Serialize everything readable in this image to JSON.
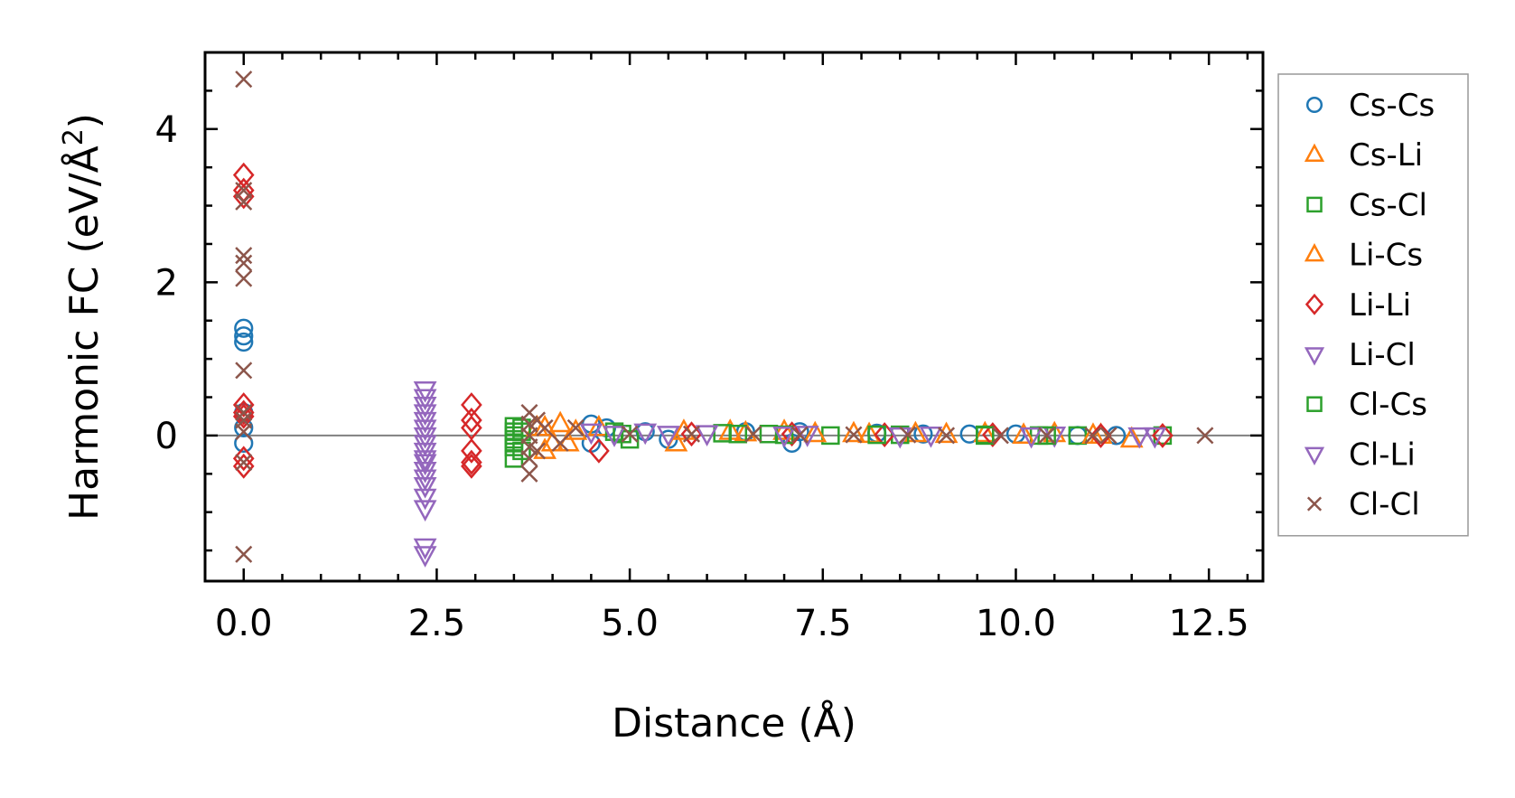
{
  "chart_data": {
    "type": "scatter",
    "xlabel": "Distance (Å)",
    "ylabel": {
      "base": "Harmonic FC (eV/Å",
      "sup": "2",
      "close": ")"
    },
    "xlim": [
      -0.5,
      13.2
    ],
    "ylim": [
      -1.9,
      5.0
    ],
    "x_ticks": [
      0.0,
      2.5,
      5.0,
      7.5,
      10.0,
      12.5
    ],
    "x_tick_labels": [
      "0.0",
      "2.5",
      "5.0",
      "7.5",
      "10.0",
      "12.5"
    ],
    "y_ticks": [
      0,
      2,
      4
    ],
    "y_tick_labels": [
      "0",
      "2",
      "4"
    ],
    "x_minor_step": 0.5,
    "y_minor_step": 0.5,
    "grid": false,
    "reference_line": {
      "y": 0,
      "color": "#808080"
    },
    "legend_position": "outside-right",
    "series": [
      {
        "name": "Cs-Cs",
        "marker": "circle",
        "color": "#1f77b4",
        "points": [
          [
            0,
            1.4
          ],
          [
            0,
            1.3
          ],
          [
            0,
            1.22
          ],
          [
            0,
            0.3
          ],
          [
            0,
            0.1
          ],
          [
            0,
            -0.1
          ],
          [
            4.5,
            0.15
          ],
          [
            4.5,
            -0.1
          ],
          [
            4.7,
            0.1
          ],
          [
            5.2,
            0.05
          ],
          [
            5.5,
            -0.05
          ],
          [
            6.5,
            0.05
          ],
          [
            7.1,
            -0.1
          ],
          [
            7.2,
            0.05
          ],
          [
            8.2,
            0.03
          ],
          [
            8.8,
            0.02
          ],
          [
            9.4,
            0.02
          ],
          [
            10.0,
            0.02
          ],
          [
            10.8,
            0.0
          ],
          [
            11.3,
            0.0
          ]
        ]
      },
      {
        "name": "Cs-Li",
        "marker": "triangle-up",
        "color": "#ff7f0e",
        "points": [
          [
            3.9,
            0.1
          ],
          [
            3.9,
            -0.2
          ],
          [
            4.1,
            0.15
          ],
          [
            4.2,
            -0.1
          ],
          [
            4.6,
            0.1
          ],
          [
            5.6,
            -0.1
          ],
          [
            6.3,
            0.05
          ],
          [
            7.0,
            0.05
          ],
          [
            7.9,
            0.02
          ],
          [
            8.7,
            0.02
          ],
          [
            9.6,
            0.02
          ],
          [
            10.5,
            0.02
          ],
          [
            11.1,
            0.0
          ],
          [
            11.5,
            -0.05
          ]
        ]
      },
      {
        "name": "Cs-Cl",
        "marker": "square",
        "color": "#2ca02c",
        "points": [
          [
            3.5,
            0.12
          ],
          [
            3.5,
            0.05
          ],
          [
            3.5,
            -0.05
          ],
          [
            3.5,
            -0.15
          ],
          [
            3.5,
            -0.3
          ],
          [
            3.6,
            0.1
          ],
          [
            3.6,
            -0.2
          ],
          [
            4.8,
            0.05
          ],
          [
            5.0,
            -0.05
          ],
          [
            6.2,
            0.03
          ],
          [
            6.8,
            0.02
          ],
          [
            7.6,
            0.0
          ],
          [
            8.5,
            0.01
          ],
          [
            9.6,
            0.01
          ],
          [
            10.3,
            0.0
          ],
          [
            10.8,
            0.0
          ],
          [
            11.9,
            0.0
          ]
        ]
      },
      {
        "name": "Li-Cs",
        "marker": "triangle-up",
        "color": "#ff7f0e",
        "points": [
          [
            3.8,
            0.1
          ],
          [
            4.0,
            -0.1
          ],
          [
            4.3,
            0.05
          ],
          [
            5.7,
            0.05
          ],
          [
            6.5,
            0.03
          ],
          [
            7.4,
            0.02
          ],
          [
            8.1,
            0.01
          ],
          [
            9.1,
            0.01
          ],
          [
            10.1,
            0.0
          ],
          [
            11.0,
            0.0
          ]
        ]
      },
      {
        "name": "Li-Li",
        "marker": "diamond",
        "color": "#d62728",
        "points": [
          [
            0,
            3.4
          ],
          [
            0,
            3.2
          ],
          [
            0,
            3.12
          ],
          [
            0,
            0.4
          ],
          [
            0,
            0.3
          ],
          [
            0,
            0.25
          ],
          [
            0,
            -0.3
          ],
          [
            0,
            -0.4
          ],
          [
            2.95,
            0.4
          ],
          [
            2.95,
            0.2
          ],
          [
            2.95,
            0.1
          ],
          [
            2.95,
            -0.2
          ],
          [
            2.95,
            -0.35
          ],
          [
            2.95,
            -0.4
          ],
          [
            4.6,
            -0.2
          ],
          [
            5.8,
            0.02
          ],
          [
            7.1,
            0.02
          ],
          [
            8.3,
            0.01
          ],
          [
            9.7,
            0.01
          ],
          [
            11.1,
            0.0
          ],
          [
            11.9,
            0.0
          ]
        ]
      },
      {
        "name": "Li-Cl",
        "marker": "triangle-down",
        "color": "#9467bd",
        "points": [
          [
            2.35,
            0.6
          ],
          [
            2.35,
            0.5
          ],
          [
            2.35,
            0.4
          ],
          [
            2.35,
            0.2
          ],
          [
            2.35,
            0.1
          ],
          [
            2.35,
            0.0
          ],
          [
            2.35,
            -0.1
          ],
          [
            2.35,
            -0.2
          ],
          [
            2.35,
            -0.3
          ],
          [
            2.35,
            -0.45
          ],
          [
            2.35,
            -0.55
          ],
          [
            2.35,
            -0.65
          ],
          [
            2.35,
            -0.8
          ],
          [
            2.35,
            -0.95
          ],
          [
            2.35,
            -1.45
          ],
          [
            2.35,
            -1.55
          ],
          [
            4.5,
            0.05
          ],
          [
            5.2,
            0.05
          ],
          [
            6.0,
            0.03
          ],
          [
            7.3,
            0.02
          ],
          [
            8.9,
            0.01
          ],
          [
            10.5,
            0.01
          ],
          [
            11.8,
            0.0
          ]
        ]
      },
      {
        "name": "Cl-Cs",
        "marker": "square",
        "color": "#2ca02c",
        "points": [
          [
            3.5,
            0.0
          ],
          [
            3.5,
            -0.1
          ],
          [
            3.6,
            0.05
          ],
          [
            4.9,
            0.02
          ],
          [
            6.4,
            0.02
          ],
          [
            7.0,
            0.01
          ],
          [
            8.2,
            0.01
          ],
          [
            9.6,
            0.0
          ],
          [
            10.4,
            0.0
          ]
        ]
      },
      {
        "name": "Cl-Li",
        "marker": "triangle-down",
        "color": "#9467bd",
        "points": [
          [
            2.35,
            0.3
          ],
          [
            2.35,
            -0.35
          ],
          [
            4.8,
            0.02
          ],
          [
            5.5,
            0.02
          ],
          [
            7.0,
            0.01
          ],
          [
            8.5,
            0.0
          ],
          [
            10.2,
            0.0
          ],
          [
            11.6,
            0.0
          ]
        ]
      },
      {
        "name": "Cl-Cl",
        "marker": "x",
        "color": "#8c564b",
        "points": [
          [
            0,
            4.65
          ],
          [
            0,
            3.2
          ],
          [
            0,
            3.05
          ],
          [
            0,
            2.35
          ],
          [
            0,
            2.25
          ],
          [
            0,
            2.05
          ],
          [
            0,
            0.85
          ],
          [
            0,
            0.3
          ],
          [
            0,
            0.2
          ],
          [
            0,
            0.05
          ],
          [
            0,
            -0.35
          ],
          [
            0,
            -1.55
          ],
          [
            3.7,
            0.3
          ],
          [
            3.7,
            0.15
          ],
          [
            3.7,
            0.0
          ],
          [
            3.7,
            -0.15
          ],
          [
            3.7,
            -0.3
          ],
          [
            3.7,
            -0.5
          ],
          [
            3.8,
            0.2
          ],
          [
            3.8,
            -0.2
          ],
          [
            3.9,
            0.1
          ],
          [
            4.1,
            -0.1
          ],
          [
            4.3,
            0.1
          ],
          [
            5.0,
            0.02
          ],
          [
            5.8,
            0.02
          ],
          [
            6.6,
            0.02
          ],
          [
            7.2,
            0.01
          ],
          [
            7.9,
            0.01
          ],
          [
            8.6,
            0.01
          ],
          [
            9.1,
            0.0
          ],
          [
            9.8,
            0.0
          ],
          [
            10.4,
            0.0
          ],
          [
            11.0,
            0.0
          ],
          [
            11.2,
            0.0
          ],
          [
            12.45,
            0.0
          ]
        ]
      }
    ]
  }
}
